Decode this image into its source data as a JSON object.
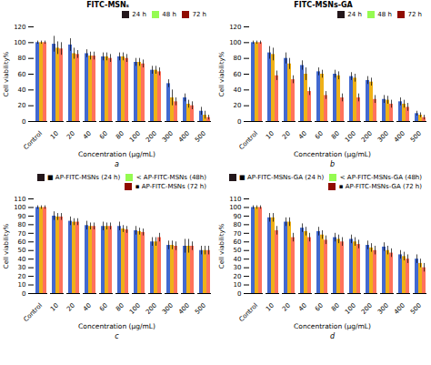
{
  "chart_data": [
    {
      "type": "bar",
      "title": "FITC-MSNₛ",
      "xlabel": "Concentration (μg/mL)",
      "ylabel": "Cell viability%",
      "annotations": [
        "a"
      ],
      "categories": [
        "Control",
        "10",
        "20",
        "40",
        "60",
        "80",
        "100",
        "200",
        "300",
        "400",
        "500"
      ],
      "series": [
        {
          "name": "24 h",
          "values": [
            100,
            98,
            97,
            86,
            82,
            82,
            75,
            65,
            48,
            30,
            13
          ],
          "errors": [
            2,
            10,
            8,
            5,
            5,
            5,
            5,
            5,
            5,
            5,
            5
          ]
        },
        {
          "name": "48 h",
          "values": [
            100,
            93,
            86,
            83,
            82,
            82,
            75,
            65,
            30,
            22,
            8
          ],
          "errors": [
            2,
            8,
            7,
            5,
            5,
            5,
            5,
            5,
            10,
            5,
            5
          ]
        },
        {
          "name": "72 h",
          "values": [
            100,
            92,
            85,
            83,
            80,
            80,
            73,
            63,
            25,
            20,
            5
          ],
          "errors": [
            2,
            8,
            5,
            5,
            5,
            5,
            5,
            5,
            5,
            5,
            3
          ]
        }
      ],
      "ylim": [
        0,
        120
      ],
      "yticks": [
        0,
        20,
        40,
        60,
        80,
        100,
        120
      ],
      "grid": false,
      "legend": "top"
    },
    {
      "type": "bar",
      "title": "FITC-MSNs-GA",
      "xlabel": "Concentration (μg/mL)",
      "ylabel": "Cell viability%",
      "annotations": [
        "b"
      ],
      "categories": [
        "Control",
        "10",
        "20",
        "40",
        "60",
        "80",
        "100",
        "200",
        "300",
        "400",
        "500"
      ],
      "series": [
        {
          "name": "24 h",
          "values": [
            100,
            87,
            80,
            71,
            63,
            60,
            57,
            52,
            28,
            25,
            10
          ],
          "errors": [
            2,
            8,
            7,
            6,
            5,
            5,
            5,
            5,
            5,
            5,
            3
          ]
        },
        {
          "name": "48 h",
          "values": [
            100,
            85,
            73,
            60,
            60,
            58,
            55,
            50,
            27,
            22,
            8
          ],
          "errors": [
            2,
            8,
            7,
            8,
            5,
            5,
            5,
            5,
            5,
            5,
            3
          ]
        },
        {
          "name": "72 h",
          "values": [
            100,
            58,
            53,
            38,
            33,
            30,
            30,
            28,
            22,
            18,
            5
          ],
          "errors": [
            2,
            6,
            5,
            5,
            5,
            5,
            5,
            5,
            5,
            5,
            3
          ]
        }
      ],
      "ylim": [
        0,
        120
      ],
      "yticks": [
        0,
        20,
        40,
        60,
        80,
        100,
        120
      ],
      "grid": false,
      "legend": "top"
    },
    {
      "type": "bar",
      "xlabel": "Concentration (μg/mL)",
      "ylabel": "Cell viability%",
      "annotations": [
        "c"
      ],
      "categories": [
        "Control",
        "10",
        "20",
        "40",
        "60",
        "80",
        "100",
        "200",
        "300",
        "400",
        "500"
      ],
      "series": [
        {
          "name": "■ AP-FITC-MSNs (24 h)",
          "values": [
            100,
            90,
            84,
            79,
            78,
            78,
            73,
            60,
            56,
            55,
            50
          ],
          "errors": [
            2,
            5,
            5,
            5,
            5,
            5,
            5,
            5,
            5,
            8,
            5
          ]
        },
        {
          "name": "< AP-FITC-MSNs (48h)",
          "values": [
            100,
            89,
            83,
            78,
            78,
            75,
            72,
            60,
            56,
            55,
            50
          ],
          "errors": [
            2,
            4,
            4,
            4,
            4,
            4,
            4,
            5,
            5,
            8,
            5
          ]
        },
        {
          "name": "▪ AP-FITC-MSNs (72 h)",
          "values": [
            100,
            89,
            83,
            78,
            78,
            74,
            71,
            65,
            55,
            55,
            50
          ],
          "errors": [
            2,
            4,
            4,
            4,
            4,
            4,
            4,
            5,
            5,
            5,
            5
          ]
        }
      ],
      "ylim": [
        0,
        110
      ],
      "yticks": [
        0,
        10,
        20,
        30,
        40,
        50,
        60,
        70,
        80,
        90,
        100,
        110
      ],
      "grid": false,
      "legend": "top"
    },
    {
      "type": "bar",
      "xlabel": "Concentration (μg/mL)",
      "ylabel": "Cell viability%",
      "annotations": [
        "d"
      ],
      "categories": [
        "Control",
        "10",
        "20",
        "40",
        "60",
        "80",
        "100",
        "200",
        "300",
        "400",
        "500"
      ],
      "series": [
        {
          "name": "■ AP-FITC-MSNs-GA (24 h)",
          "values": [
            100,
            88,
            83,
            76,
            72,
            65,
            63,
            56,
            54,
            45,
            40
          ],
          "errors": [
            2,
            5,
            5,
            5,
            5,
            5,
            5,
            5,
            5,
            5,
            5
          ]
        },
        {
          "name": "< AP-FITC-MSNs-GA (48h)",
          "values": [
            100,
            88,
            83,
            72,
            68,
            63,
            60,
            53,
            50,
            43,
            35
          ],
          "errors": [
            2,
            5,
            5,
            5,
            5,
            5,
            5,
            5,
            5,
            5,
            5
          ]
        },
        {
          "name": "▪ AP-FITC-MSNs-GA (72 h)",
          "values": [
            100,
            73,
            65,
            65,
            62,
            60,
            57,
            50,
            47,
            40,
            30
          ],
          "errors": [
            2,
            5,
            5,
            5,
            5,
            5,
            5,
            5,
            5,
            5,
            5
          ]
        }
      ],
      "ylim": [
        0,
        110
      ],
      "yticks": [
        0,
        10,
        20,
        30,
        40,
        50,
        60,
        70,
        80,
        90,
        100,
        110
      ],
      "grid": false,
      "legend": "top"
    }
  ]
}
